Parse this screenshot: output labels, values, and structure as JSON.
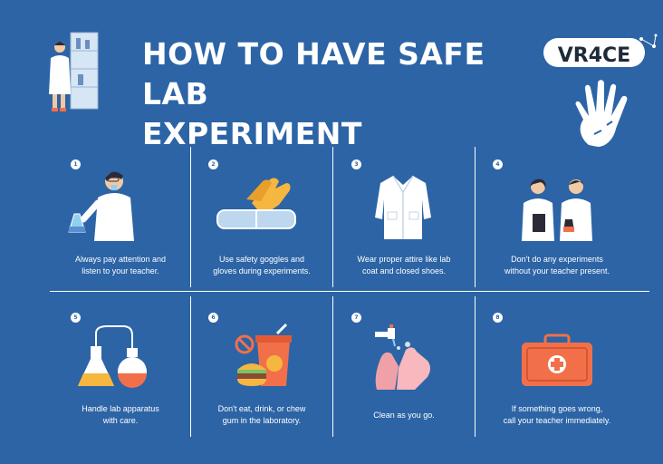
{
  "header": {
    "title_line1": "HOW TO HAVE SAFE  LAB",
    "title_line2": "EXPERIMENT",
    "logo_text": "VR4CE"
  },
  "steps": [
    {
      "number": "1",
      "line1": "Always pay attention and",
      "line2": "listen to your teacher."
    },
    {
      "number": "2",
      "line1": "Use safety goggles and",
      "line2": "gloves during experiments."
    },
    {
      "number": "3",
      "line1": "Wear proper attire like lab",
      "line2": "coat and closed shoes."
    },
    {
      "number": "4",
      "line1": "Don't do any experiments",
      "line2": "without your teacher present."
    },
    {
      "number": "5",
      "line1": "Handle lab apparatus",
      "line2": "with care."
    },
    {
      "number": "6",
      "line1": "Don't eat, drink, or chew",
      "line2": "gum in the laboratory."
    },
    {
      "number": "7",
      "line1": "Clean as you go.",
      "line2": ""
    },
    {
      "number": "8",
      "line1": "If something goes wrong,",
      "line2": "call your teacher immediately."
    }
  ],
  "colors": {
    "background": "#2c64a6",
    "accent": "#f27049",
    "text": "#ffffff"
  }
}
